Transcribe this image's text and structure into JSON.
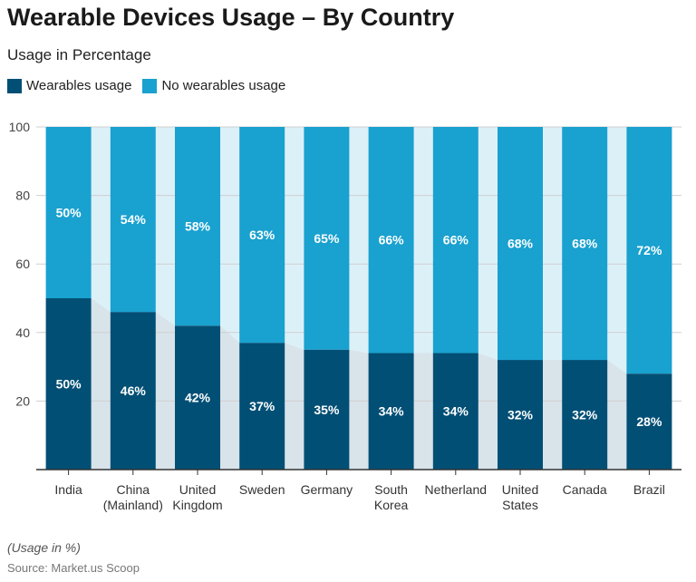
{
  "title": "Wearable Devices Usage – By Country",
  "subtitle": "Usage in Percentage",
  "note": "(Usage in %)",
  "source": "Source: Market.us Scoop",
  "colors": {
    "wearables": "#024f75",
    "no_wearables": "#19a1cf",
    "connector_top": "#dcf0f8",
    "connector_bottom": "#d8e3ea"
  },
  "chart_data": {
    "type": "bar",
    "stacked": true,
    "title": "Wearable Devices Usage – By Country",
    "ylabel": "Usage in Percentage",
    "ylim": [
      0,
      100
    ],
    "yticks": [
      20,
      40,
      60,
      80,
      100
    ],
    "categories": [
      [
        "India"
      ],
      [
        "China",
        "(Mainland)"
      ],
      [
        "United",
        "Kingdom"
      ],
      [
        "Sweden"
      ],
      [
        "Germany"
      ],
      [
        "South",
        "Korea"
      ],
      [
        "Netherland"
      ],
      [
        "United",
        "States"
      ],
      [
        "Canada"
      ],
      [
        "Brazil"
      ]
    ],
    "series": [
      {
        "name": "Wearables usage",
        "values": [
          50,
          46,
          42,
          37,
          35,
          34,
          34,
          32,
          32,
          28
        ]
      },
      {
        "name": "No wearables usage",
        "values": [
          50,
          54,
          58,
          63,
          65,
          66,
          66,
          68,
          68,
          72
        ]
      }
    ],
    "legend": "top-left",
    "grid": true
  }
}
